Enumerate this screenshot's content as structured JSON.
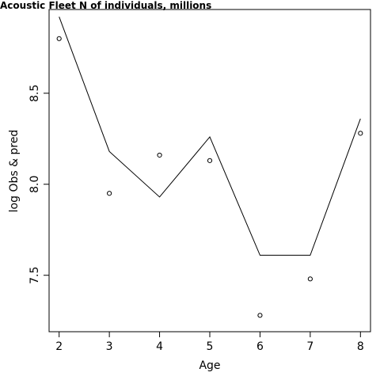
{
  "chart_data": {
    "type": "line",
    "title": "Acoustic Fleet   N of individuals, millions",
    "xlabel": "Age",
    "ylabel": "log Obs & pred",
    "xlim": [
      1.8,
      8.2
    ],
    "ylim": [
      7.19,
      8.96
    ],
    "x_ticks": [
      2,
      3,
      4,
      5,
      6,
      7,
      8
    ],
    "y_ticks": [
      7.5,
      8.0,
      8.5
    ],
    "y_tick_labels": [
      "7.5",
      "8.0",
      "8.5"
    ],
    "grid": false,
    "series": [
      {
        "kind": "line",
        "x": [
          2,
          3,
          4,
          5,
          6,
          7,
          8
        ],
        "values": [
          8.92,
          8.18,
          7.93,
          8.26,
          7.61,
          7.61,
          8.36
        ]
      },
      {
        "kind": "points",
        "x": [
          2,
          3,
          4,
          5,
          6,
          7,
          8
        ],
        "values": [
          8.8,
          7.95,
          8.16,
          8.13,
          7.28,
          7.48,
          8.28
        ]
      }
    ]
  }
}
